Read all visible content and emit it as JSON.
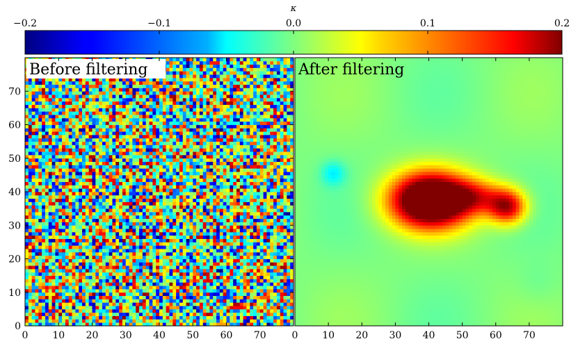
{
  "chart_data": {
    "type": "heatmap",
    "colormap": "jet",
    "colorbar": {
      "label": "κ",
      "range": [
        -0.2,
        0.2
      ],
      "ticks": [
        -0.2,
        -0.1,
        0.0,
        0.1,
        0.2
      ],
      "tick_labels": [
        "−0.2",
        "−0.1",
        "0.0",
        "0.1",
        "0.2"
      ],
      "placement": "top"
    },
    "panels": [
      {
        "title": "Before filtering",
        "xlim": [
          0,
          80
        ],
        "ylim": [
          0,
          80
        ],
        "xticks": [
          0,
          10,
          20,
          30,
          40,
          50,
          60,
          70
        ],
        "xtick_labels": [
          "0",
          "10",
          "20",
          "30",
          "40",
          "50",
          "60",
          "70"
        ],
        "yticks": [
          0,
          10,
          20,
          30,
          40,
          50,
          60,
          70
        ],
        "ytick_labels": [
          "0",
          "10",
          "20",
          "30",
          "40",
          "50",
          "60",
          "70"
        ],
        "grid": false,
        "content": "noisy convergence map, pixel values spanning -0.2 to 0.2 with no visible structure"
      },
      {
        "title": "After filtering",
        "xlim": [
          0,
          80
        ],
        "ylim": [
          0,
          80
        ],
        "xticks": [
          0,
          10,
          20,
          30,
          40,
          50,
          60,
          70
        ],
        "xtick_labels": [
          "0",
          "10",
          "20",
          "30",
          "40",
          "50",
          "60",
          "70"
        ],
        "grid": false,
        "background_value": 0.0,
        "features": [
          {
            "kind": "peak",
            "x": 40,
            "y": 37,
            "peak_value": 0.2
          },
          {
            "kind": "peak",
            "x": 63,
            "y": 35,
            "peak_value": 0.17
          },
          {
            "kind": "dip",
            "x": 11,
            "y": 45,
            "peak_value": -0.05
          }
        ]
      }
    ]
  }
}
